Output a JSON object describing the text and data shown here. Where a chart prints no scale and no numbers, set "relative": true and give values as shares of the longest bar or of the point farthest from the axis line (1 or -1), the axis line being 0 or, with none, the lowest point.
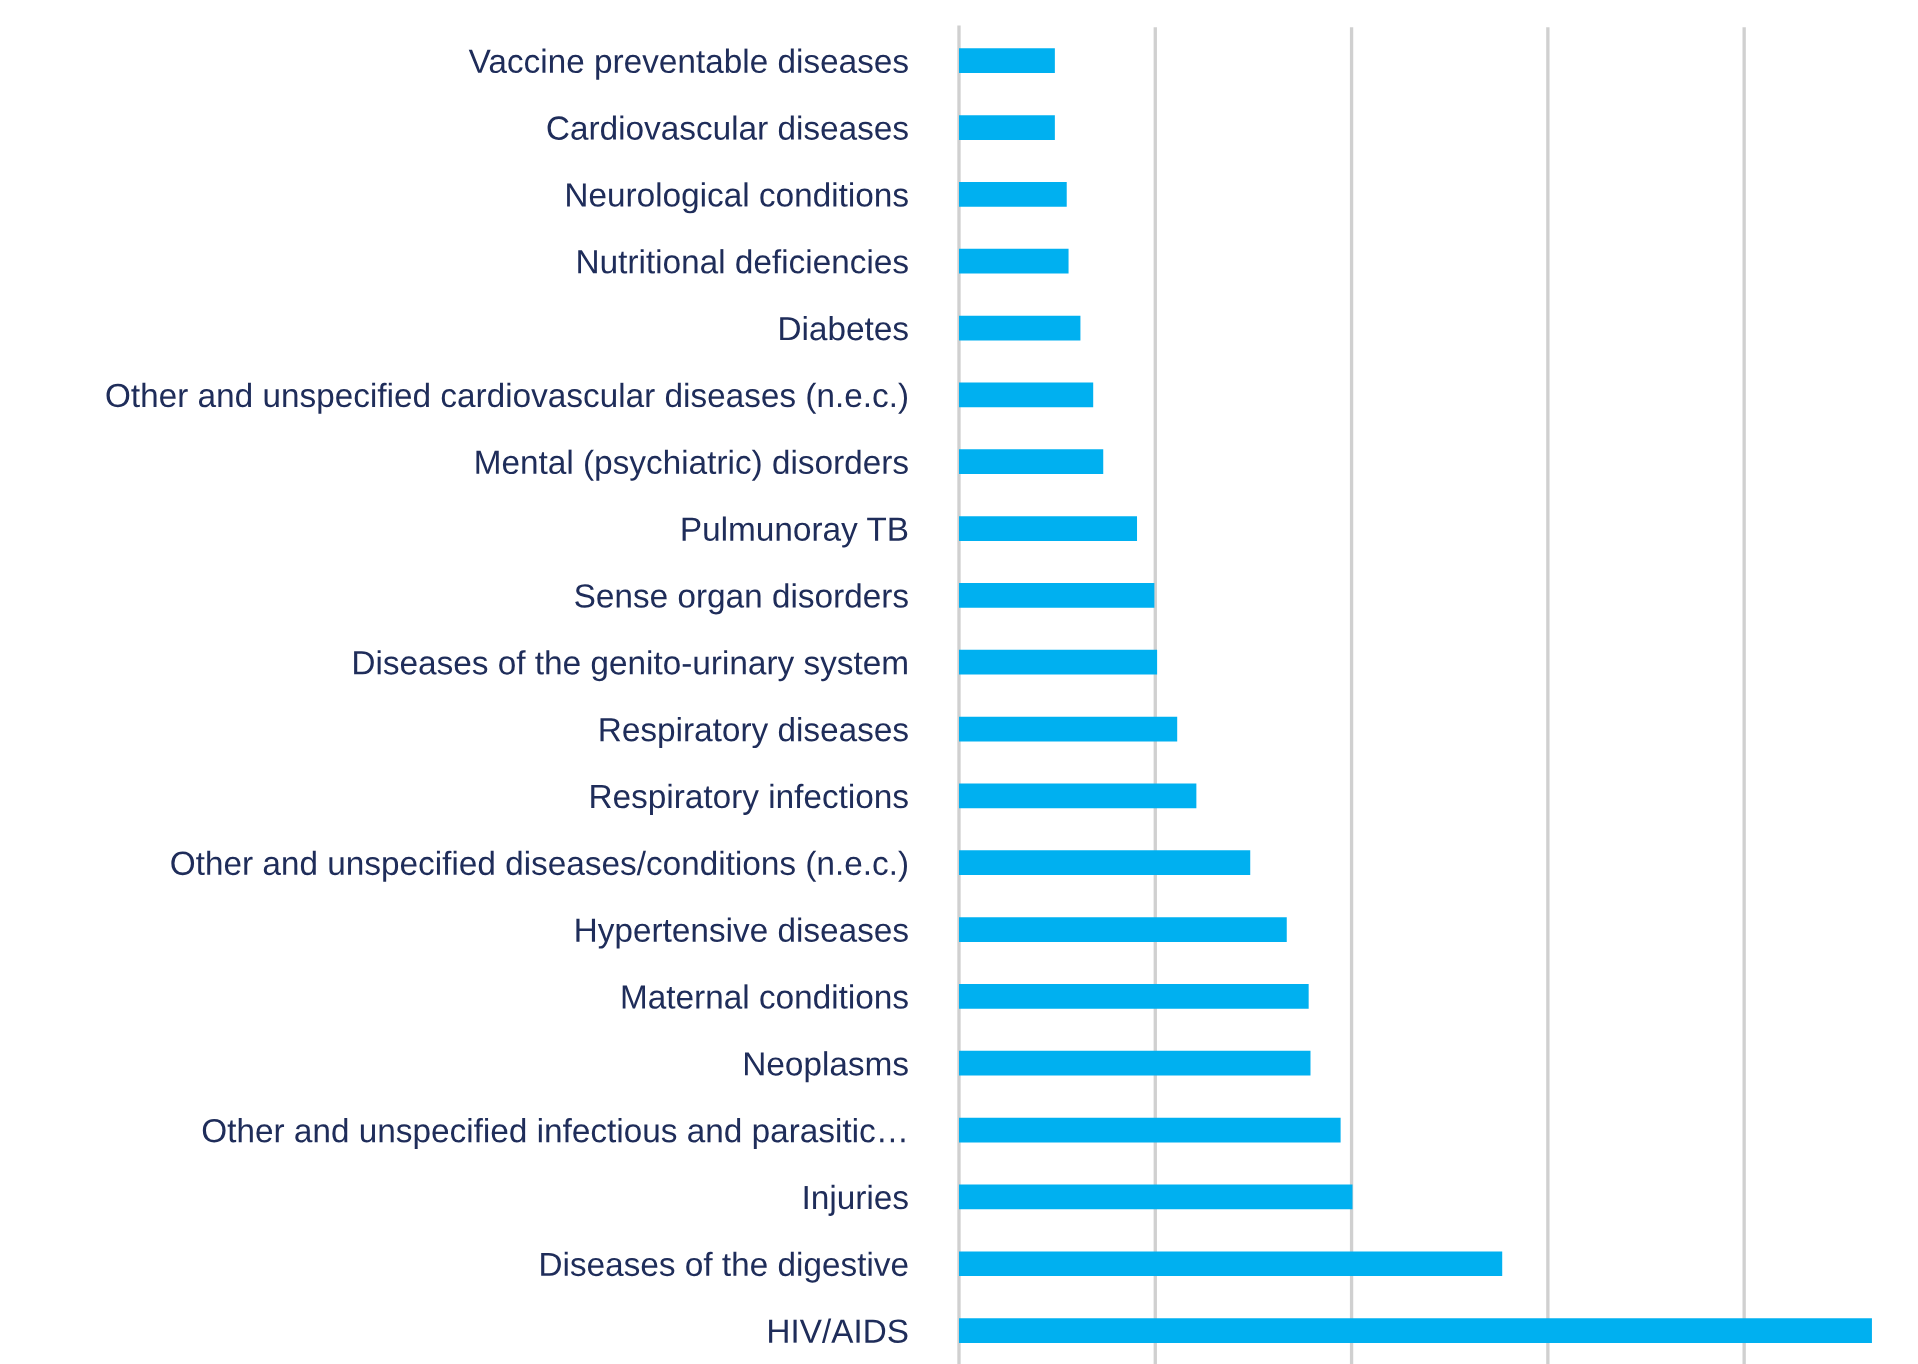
{
  "chart_data": {
    "type": "bar",
    "orientation": "horizontal",
    "relative": true,
    "color": "#00b0f0",
    "categories": [
      "Vaccine preventable diseases",
      "Cardiovascular diseases",
      "Neurological conditions",
      "Nutritional deficiencies",
      "Diabetes",
      "Other and unspecified cardiovascular diseases (n.e.c.)",
      "Mental (psychiatric) disorders",
      "Pulmunoray TB",
      "Sense organ disorders",
      "Diseases of the genito-urinary system",
      "Respiratory diseases",
      "Respiratory infections",
      "Other and unspecified diseases/conditions (n.e.c.)",
      "Hypertensive diseases",
      "Maternal conditions",
      "Neoplasms",
      "Other and unspecified infectious and parasitic…",
      "Injuries",
      "Diseases of the digestive",
      "HIV/AIDS"
    ],
    "values": [
      0.105,
      0.105,
      0.118,
      0.12,
      0.133,
      0.147,
      0.158,
      0.195,
      0.214,
      0.217,
      0.239,
      0.26,
      0.319,
      0.359,
      0.383,
      0.385,
      0.418,
      0.431,
      0.595,
      1
    ],
    "ref_lines": [
      {
        "axis": "x",
        "value": 0.215,
        "color": "#d0d0d0"
      },
      {
        "axis": "x",
        "value": 0.43,
        "color": "#d0d0d0"
      },
      {
        "axis": "x",
        "value": 0.645,
        "color": "#d0d0d0"
      },
      {
        "axis": "x",
        "value": 0.86,
        "color": "#d0d0d0"
      }
    ]
  }
}
